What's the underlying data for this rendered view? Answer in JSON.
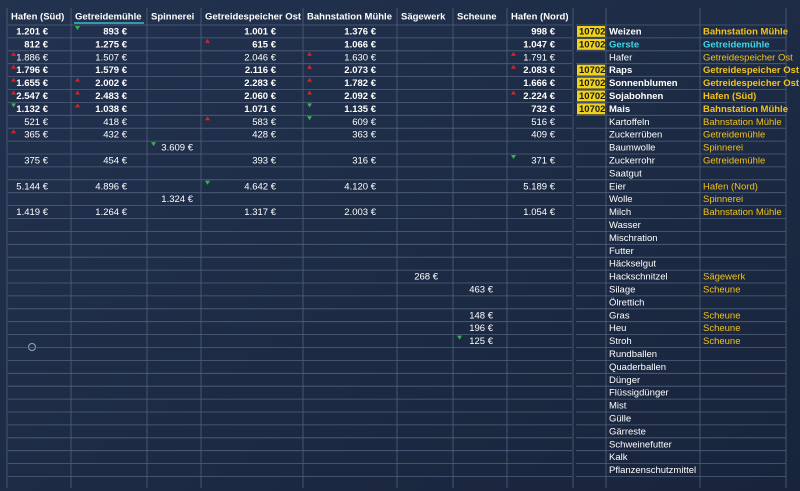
{
  "columns": [
    "Hafen (Süd)",
    {
      "label": "Getreidemühle",
      "color": "#3fd8e8"
    },
    "Spinnerei",
    "Getreidespeicher Ost",
    "Bahnstation Mühle",
    "Sägewerk",
    "Scheune",
    "Hafen (Nord)"
  ],
  "rows": [
    {
      "product": "Weizen",
      "bold": true,
      "stock": "10702",
      "best": "Bahnstation Mühle",
      "cells": [
        "1.201 €",
        {
          "text": "893 €",
          "arrow": "down"
        },
        null,
        "1.001 €",
        {
          "text": "1.376 €",
          "color": "#2fb84a"
        },
        null,
        null,
        "998 €"
      ]
    },
    {
      "product": {
        "text": "Gerste",
        "color": "#3fd8e8"
      },
      "bold": true,
      "stock": "10702",
      "best": {
        "text": "Getreidemühle",
        "color": "#3fd8e8"
      },
      "cells": [
        "812 €",
        {
          "text": "1.275 €",
          "color": "#3fd8e8"
        },
        null,
        {
          "text": "615 €",
          "arrow": "up"
        },
        "1.066 €",
        null,
        null,
        "1.047 €"
      ]
    },
    {
      "product": "Hafer",
      "bold": false,
      "stock": null,
      "best": "Getreidespeicher Ost",
      "cells": [
        {
          "text": "1.886 €",
          "arrow": "up"
        },
        "1.507 €",
        null,
        {
          "text": "2.046 €",
          "color": "#2fb84a"
        },
        {
          "text": "1.630 €",
          "arrow": "up"
        },
        null,
        null,
        {
          "text": "1.791 €",
          "arrow": "up"
        }
      ]
    },
    {
      "product": "Raps",
      "bold": true,
      "stock": "10702",
      "best": "Getreidespeicher Ost",
      "cells": [
        {
          "text": "1.796 €",
          "arrow": "up"
        },
        "1.579 €",
        null,
        {
          "text": "2.116 €",
          "color": "#2fb84a"
        },
        {
          "text": "2.073 €",
          "arrow": "up"
        },
        null,
        null,
        {
          "text": "2.083 €",
          "arrow": "up"
        }
      ]
    },
    {
      "product": "Sonnenblumen",
      "bold": true,
      "stock": "10702",
      "best": "Getreidespeicher Ost",
      "cells": [
        {
          "text": "1.655 €",
          "arrow": "up"
        },
        {
          "text": "2.002 €",
          "arrow": "up"
        },
        null,
        {
          "text": "2.283 €",
          "color": "#2fb84a"
        },
        {
          "text": "1.782 €",
          "arrow": "up"
        },
        null,
        null,
        "1.666 €"
      ]
    },
    {
      "product": "Sojabohnen",
      "bold": true,
      "stock": "10702",
      "best": "Hafen (Süd)",
      "cells": [
        {
          "text": "2.547 €",
          "color": "#2fb84a",
          "arrow": "up"
        },
        {
          "text": "2.483 €",
          "arrow": "up"
        },
        null,
        "2.060 €",
        {
          "text": "2.092 €",
          "arrow": "up"
        },
        null,
        null,
        {
          "text": "2.224 €",
          "arrow": "up"
        }
      ]
    },
    {
      "product": "Mais",
      "bold": true,
      "stock": "10702",
      "best": "Bahnstation Mühle",
      "cells": [
        {
          "text": "1.132 €",
          "arrow": "down"
        },
        {
          "text": "1.038 €",
          "arrow": "up"
        },
        null,
        "1.071 €",
        {
          "text": "1.135 €",
          "color": "#2fb84a",
          "arrow": "down"
        },
        null,
        null,
        "732 €"
      ]
    },
    {
      "product": "Kartoffeln",
      "bold": false,
      "stock": null,
      "best": "Bahnstation Mühle",
      "cells": [
        "521 €",
        "418 €",
        null,
        {
          "text": "583 €",
          "arrow": "up"
        },
        {
          "text": "609 €",
          "color": "#2fb84a",
          "arrow": "down"
        },
        null,
        null,
        "516 €"
      ]
    },
    {
      "product": "Zuckerrüben",
      "bold": false,
      "stock": null,
      "best": "Getreidemühle",
      "cells": [
        {
          "text": "365 €",
          "arrow": "up"
        },
        {
          "text": "432 €",
          "color": "#2fb84a"
        },
        null,
        "428 €",
        "363 €",
        null,
        null,
        "409 €"
      ]
    },
    {
      "product": "Baumwolle",
      "bold": false,
      "stock": null,
      "best": "Spinnerei",
      "cells": [
        null,
        null,
        {
          "text": "3.609 €",
          "color": "#2fb84a",
          "arrow": "down"
        },
        null,
        null,
        null,
        null,
        null
      ]
    },
    {
      "product": "Zuckerrohr",
      "bold": false,
      "stock": null,
      "best": "Getreidemühle",
      "cells": [
        "375 €",
        {
          "text": "454 €",
          "color": "#2fb84a"
        },
        null,
        "393 €",
        "316 €",
        null,
        null,
        {
          "text": "371 €",
          "arrow": "down"
        }
      ]
    },
    {
      "product": "Saatgut",
      "bold": false,
      "stock": null,
      "best": null,
      "cells": [
        null,
        null,
        null,
        null,
        null,
        null,
        null,
        null
      ]
    },
    {
      "product": "Eier",
      "bold": false,
      "stock": null,
      "best": "Hafen (Nord)",
      "cells": [
        "5.144 €",
        "4.896 €",
        null,
        {
          "text": "4.642 €",
          "arrow": "down"
        },
        "4.120 €",
        null,
        null,
        {
          "text": "5.189 €",
          "color": "#2fb84a"
        }
      ]
    },
    {
      "product": "Wolle",
      "bold": false,
      "stock": null,
      "best": "Spinnerei",
      "cells": [
        null,
        null,
        {
          "text": "1.324 €",
          "color": "#2fb84a"
        },
        null,
        null,
        null,
        null,
        null
      ]
    },
    {
      "product": "Milch",
      "bold": false,
      "stock": null,
      "best": "Bahnstation Mühle",
      "cells": [
        "1.419 €",
        "1.264 €",
        null,
        "1.317 €",
        {
          "text": "2.003 €",
          "color": "#2fb84a"
        },
        null,
        null,
        "1.054 €"
      ]
    },
    {
      "product": "Wasser",
      "bold": false,
      "stock": null,
      "best": null,
      "cells": [
        null,
        null,
        null,
        null,
        null,
        null,
        null,
        null
      ]
    },
    {
      "product": "Mischration",
      "bold": false,
      "stock": null,
      "best": null,
      "cells": [
        null,
        null,
        null,
        null,
        null,
        null,
        null,
        null
      ]
    },
    {
      "product": "Futter",
      "bold": false,
      "stock": null,
      "best": null,
      "cells": [
        null,
        null,
        null,
        null,
        null,
        null,
        null,
        null
      ]
    },
    {
      "product": "Häckselgut",
      "bold": false,
      "stock": null,
      "best": null,
      "cells": [
        null,
        null,
        null,
        null,
        null,
        null,
        null,
        null
      ]
    },
    {
      "product": "Hackschnitzel",
      "bold": false,
      "stock": null,
      "best": "Sägewerk",
      "cells": [
        null,
        null,
        null,
        null,
        null,
        {
          "text": "268 €",
          "color": "#2fb84a"
        },
        null,
        null
      ]
    },
    {
      "product": "Silage",
      "bold": false,
      "stock": null,
      "best": "Scheune",
      "cells": [
        null,
        null,
        null,
        null,
        null,
        null,
        {
          "text": "463 €",
          "color": "#2fb84a"
        },
        null
      ]
    },
    {
      "product": "Ölrettich",
      "bold": false,
      "stock": null,
      "best": null,
      "cells": [
        null,
        null,
        null,
        null,
        null,
        null,
        null,
        null
      ]
    },
    {
      "product": "Gras",
      "bold": false,
      "stock": null,
      "best": "Scheune",
      "cells": [
        null,
        null,
        null,
        null,
        null,
        null,
        {
          "text": "148 €",
          "color": "#2fb84a"
        },
        null
      ]
    },
    {
      "product": "Heu",
      "bold": false,
      "stock": null,
      "best": "Scheune",
      "cells": [
        null,
        null,
        null,
        null,
        null,
        null,
        {
          "text": "196 €",
          "color": "#2fb84a"
        },
        null
      ]
    },
    {
      "product": "Stroh",
      "bold": false,
      "stock": null,
      "best": "Scheune",
      "cells": [
        null,
        null,
        null,
        null,
        null,
        null,
        {
          "text": "125 €",
          "color": "#2fb84a",
          "arrow": "down"
        },
        null
      ]
    },
    {
      "product": "Rundballen",
      "bold": false,
      "stock": null,
      "best": null,
      "cells": [
        null,
        null,
        null,
        null,
        null,
        null,
        null,
        null
      ]
    },
    {
      "product": "Quaderballen",
      "bold": false,
      "stock": null,
      "best": null,
      "cells": [
        null,
        null,
        null,
        null,
        null,
        null,
        null,
        null
      ]
    },
    {
      "product": "Dünger",
      "bold": false,
      "stock": null,
      "best": null,
      "cells": [
        null,
        null,
        null,
        null,
        null,
        null,
        null,
        null
      ]
    },
    {
      "product": "Flüssigdünger",
      "bold": false,
      "stock": null,
      "best": null,
      "cells": [
        null,
        null,
        null,
        null,
        null,
        null,
        null,
        null
      ]
    },
    {
      "product": "Mist",
      "bold": false,
      "stock": null,
      "best": null,
      "cells": [
        null,
        null,
        null,
        null,
        null,
        null,
        null,
        null
      ]
    },
    {
      "product": "Gülle",
      "bold": false,
      "stock": null,
      "best": null,
      "cells": [
        null,
        null,
        null,
        null,
        null,
        null,
        null,
        null
      ]
    },
    {
      "product": "Gärreste",
      "bold": false,
      "stock": null,
      "best": null,
      "cells": [
        null,
        null,
        null,
        null,
        null,
        null,
        null,
        null
      ]
    },
    {
      "product": "Schweinefutter",
      "bold": false,
      "stock": null,
      "best": null,
      "cells": [
        null,
        null,
        null,
        null,
        null,
        null,
        null,
        null
      ]
    },
    {
      "product": "Kalk",
      "bold": false,
      "stock": null,
      "best": null,
      "cells": [
        null,
        null,
        null,
        null,
        null,
        null,
        null,
        null
      ]
    },
    {
      "product": "Pflanzenschutzmittel",
      "bold": false,
      "stock": null,
      "best": null,
      "cells": [
        null,
        null,
        null,
        null,
        null,
        null,
        null,
        null
      ]
    }
  ]
}
